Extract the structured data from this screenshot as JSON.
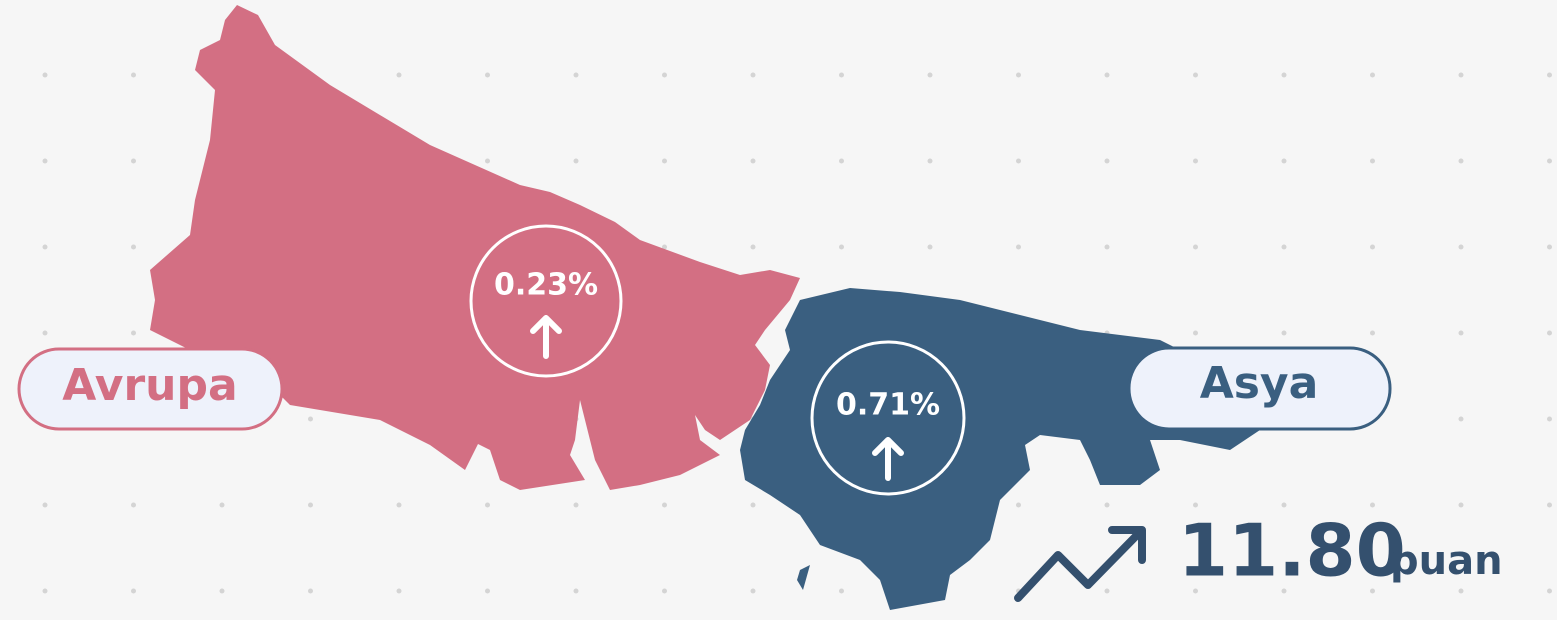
{
  "regions": [
    {
      "name": "Avrupa",
      "change": "0.23%"
    },
    {
      "name": "Asya",
      "change": "0.71%"
    }
  ],
  "score": {
    "value": "11.80",
    "unit": "puan"
  }
}
